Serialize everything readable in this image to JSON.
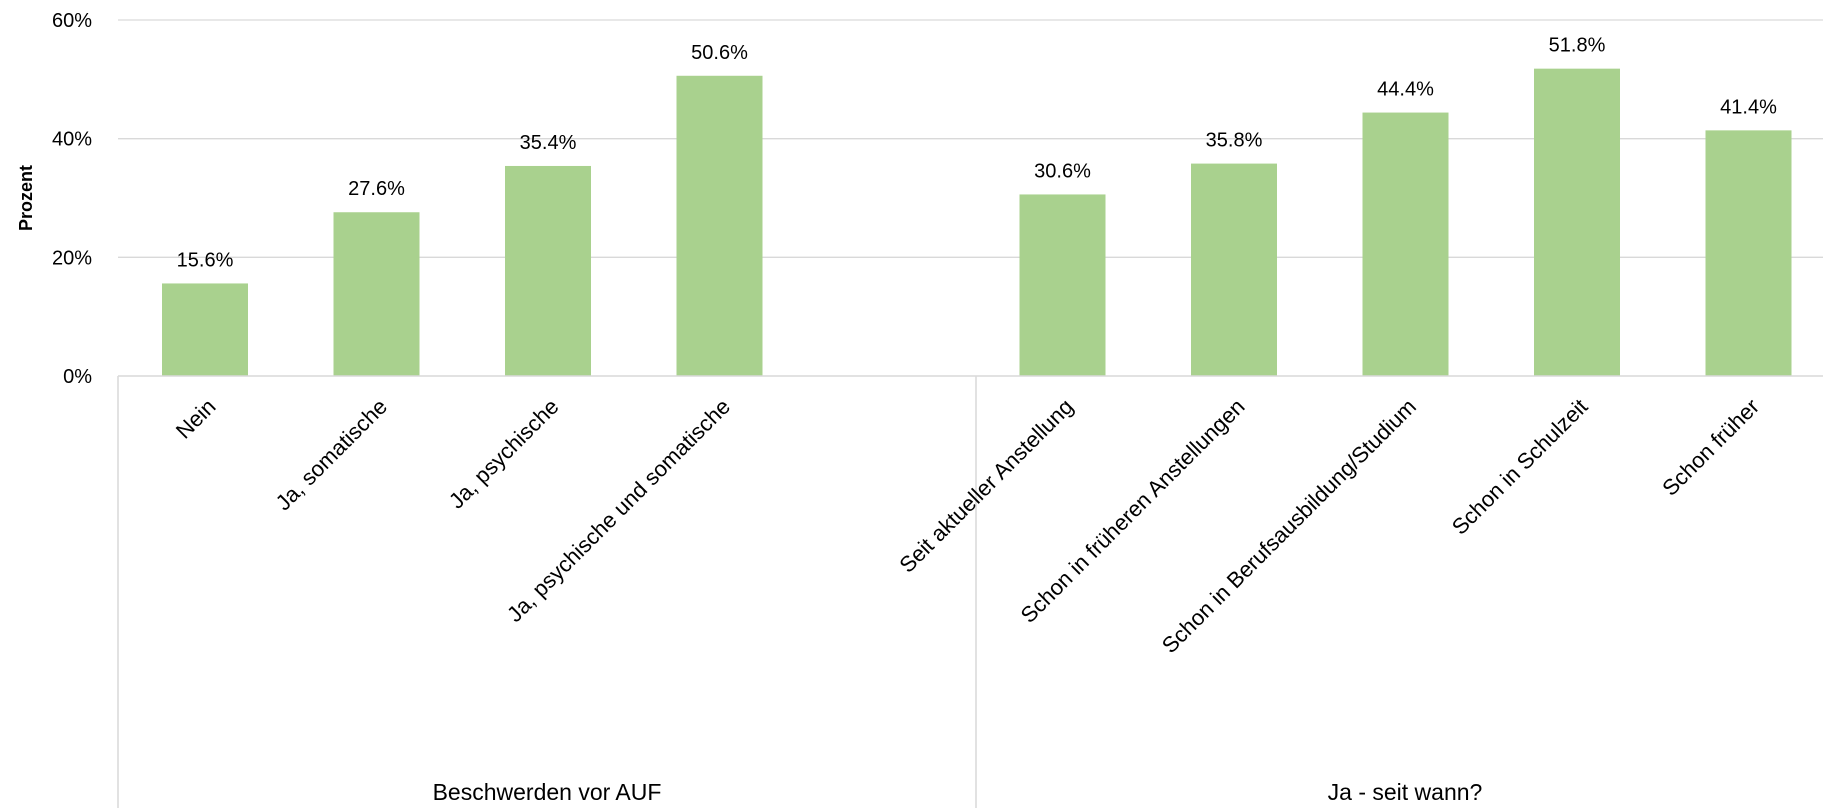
{
  "chart_data": {
    "type": "bar",
    "ylabel": "Prozent",
    "ylim": [
      0,
      0.6
    ],
    "yticks": [
      "0%",
      "20%",
      "40%",
      "60%"
    ],
    "grid": true,
    "bar_color": "#a9d18e",
    "groups": [
      {
        "name": "Beschwerden vor AUF",
        "categories": [
          "Nein",
          "Ja, somatische",
          "Ja, psychische",
          "Ja, psychische und somatische"
        ],
        "values": [
          0.156,
          0.276,
          0.354,
          0.506
        ],
        "labels": [
          "15.6%",
          "27.6%",
          "35.4%",
          "50.6%"
        ]
      },
      {
        "name": "Ja - seit wann?",
        "categories": [
          "Seit aktueller Anstellung",
          "Schon in früheren Anstellungen",
          "Schon in Berufsausbildung/Studium",
          "Schon in Schulzeit",
          "Schon früher"
        ],
        "values": [
          0.306,
          0.358,
          0.444,
          0.518,
          0.414
        ],
        "labels": [
          "30.6%",
          "35.8%",
          "44.4%",
          "51.8%",
          "41.4%"
        ]
      }
    ]
  }
}
